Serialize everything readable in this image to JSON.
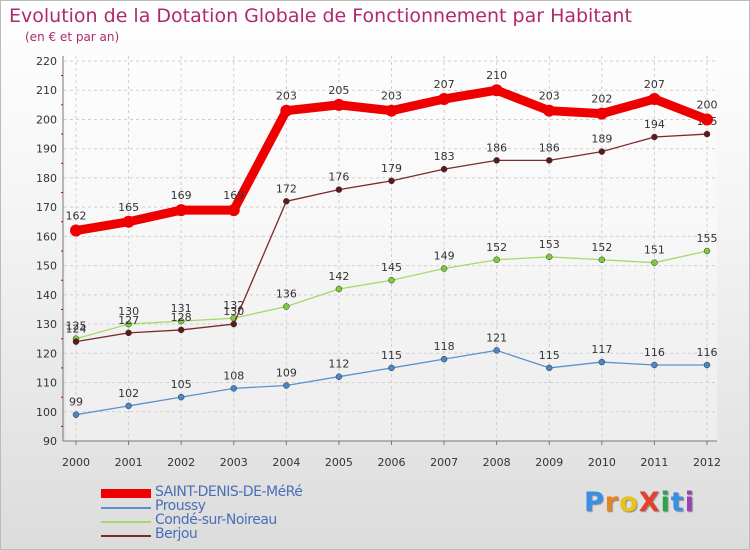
{
  "title": "Evolution de la Dotation Globale de Fonctionnement par Habitant",
  "subtitle": "(en € et par an)",
  "logo": {
    "text": "ProXiti",
    "colors": [
      "#3a8ee6",
      "#e8841e",
      "#e8c31e",
      "#e6402a",
      "#2aa34a",
      "#3a8ee6",
      "#9c3fb5"
    ]
  },
  "chart_data": {
    "type": "line",
    "title": "Evolution de la Dotation Globale de Fonctionnement par Habitant",
    "subtitle": "(en € et par an)",
    "xlabel": "",
    "ylabel": "",
    "x": [
      "2000",
      "2001",
      "2002",
      "2003",
      "2004",
      "2005",
      "2006",
      "2007",
      "2008",
      "2009",
      "2010",
      "2011",
      "2012"
    ],
    "yticks": [
      90,
      100,
      110,
      120,
      130,
      140,
      150,
      160,
      170,
      180,
      190,
      200,
      210,
      220
    ],
    "ylim": [
      90,
      220
    ],
    "grid": true,
    "legend_position": "bottom-left",
    "series": [
      {
        "name": "Proussy",
        "color": "#5b93c9",
        "marker": "#4a86c8",
        "values": [
          99,
          102,
          105,
          108,
          109,
          112,
          115,
          118,
          121,
          115,
          117,
          116,
          116
        ]
      },
      {
        "name": "Condé-sur-Noireau",
        "color": "#a6d96a",
        "marker": "#7ccc3a",
        "values": [
          125,
          130,
          131,
          132,
          136,
          142,
          145,
          149,
          152,
          153,
          152,
          151,
          155
        ]
      },
      {
        "name": "Berjou",
        "color": "#7a2c2c",
        "marker": "#5e1a1a",
        "values": [
          124,
          127,
          128,
          130,
          172,
          176,
          179,
          183,
          186,
          186,
          189,
          194,
          195
        ]
      },
      {
        "name": "SAINT-DENIS-DE-MéRé",
        "color": "#ee0000",
        "marker": "#ee0000",
        "values": [
          162,
          165,
          169,
          169,
          203,
          205,
          203,
          207,
          210,
          203,
          202,
          207,
          200
        ]
      }
    ],
    "legend_order": [
      "SAINT-DENIS-DE-MéRé",
      "Proussy",
      "Condé-sur-Noireau",
      "Berjou"
    ]
  }
}
